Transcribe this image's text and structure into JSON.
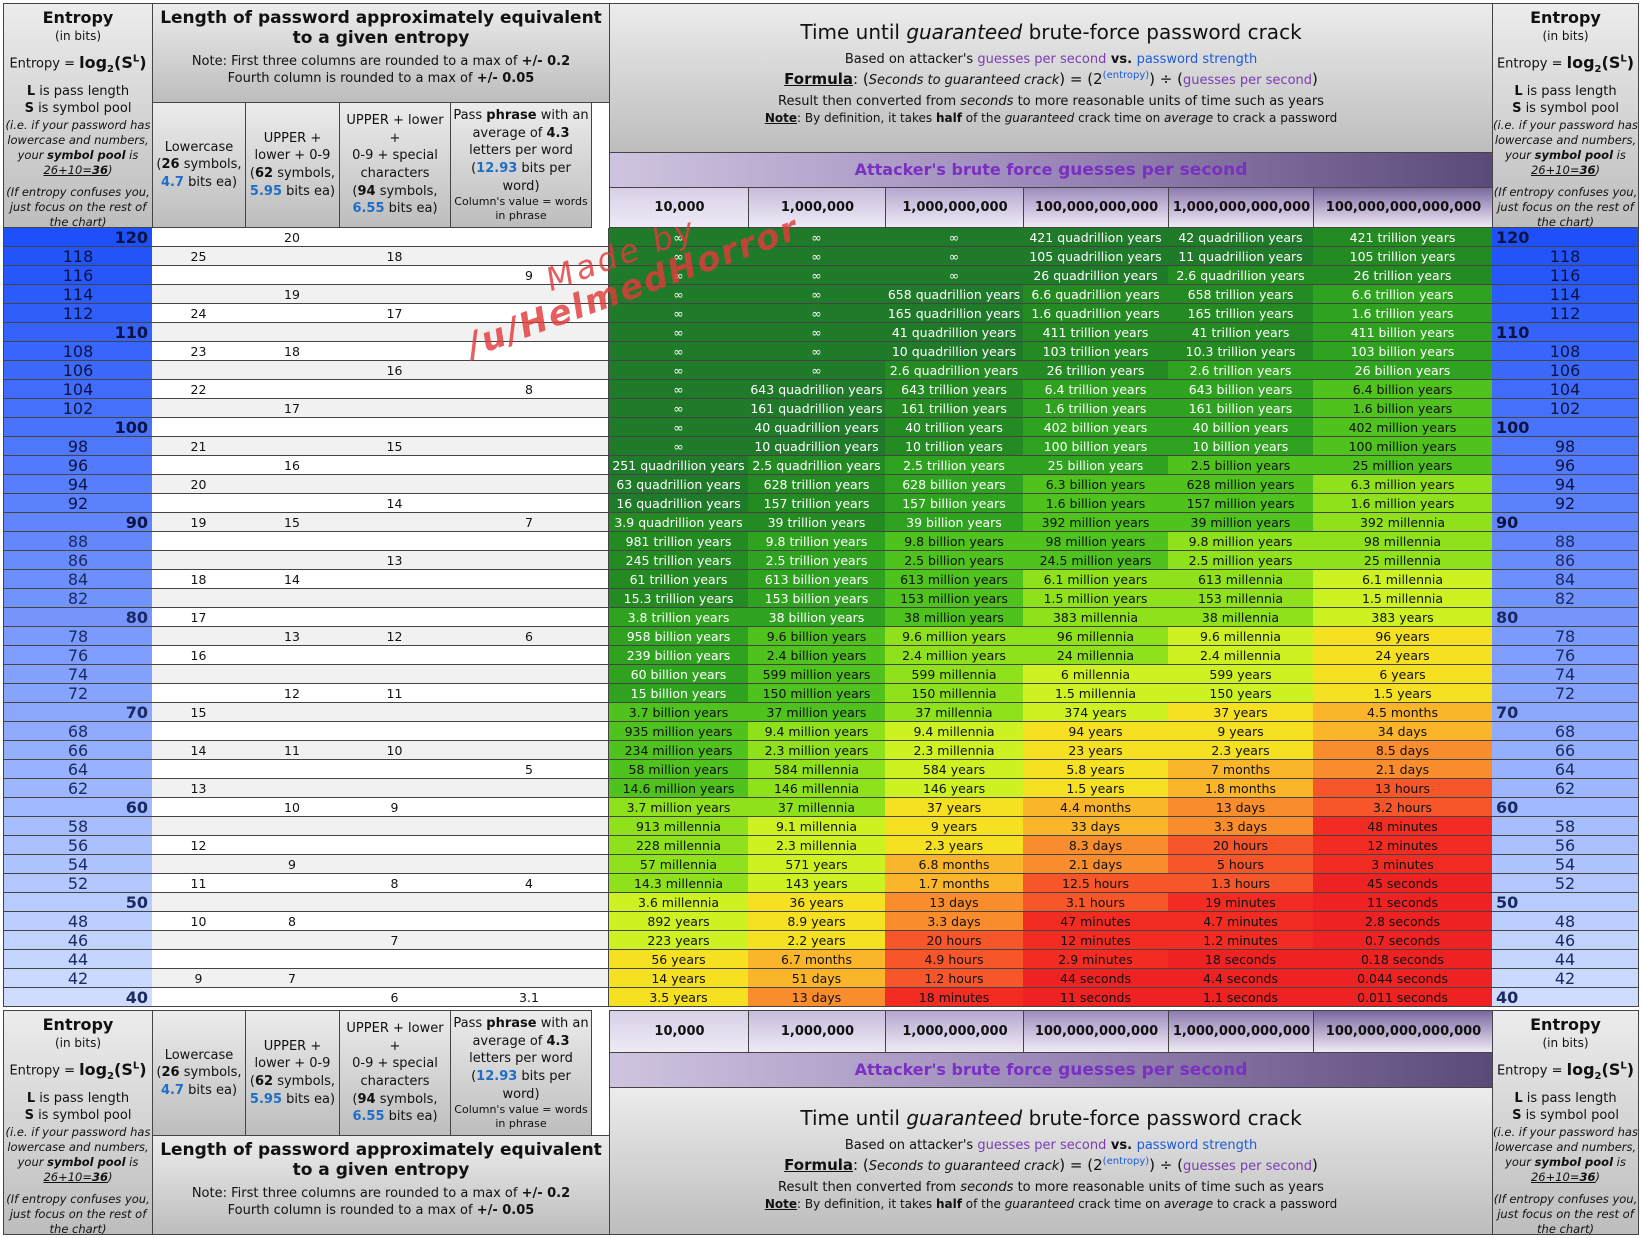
{
  "entropy_panel": {
    "title": "Entropy",
    "subtitle": "(in bits)",
    "formula_prefix": "Entropy = ",
    "formula_log": "log",
    "formula_base": "2",
    "formula_arg_open": "(S",
    "formula_arg_exp": "L",
    "formula_arg_close": ")",
    "l_letter": "L",
    "l_desc": " is pass length",
    "s_letter": "S",
    "s_desc": " is symbol pool",
    "example_a": "(i.e. if your password has lowercase and numbers, your ",
    "example_b": "symbol pool",
    "example_c": " is ",
    "example_calc": "26+10=",
    "example_result": "36",
    "example_end": ")",
    "confuse": "(If entropy confuses you, just focus on the rest of the chart)"
  },
  "length_panel": {
    "title": "Length of password approximately equivalent to a given entropy",
    "note1_a": "Note: First three columns are rounded to a max of ",
    "note1_b": "+/- 0.2",
    "note2_a": "Fourth column is rounded to a max of ",
    "note2_b": "+/- 0.05",
    "col1": {
      "line1": "Lowercase",
      "line2_a": "(",
      "line2_b": "26",
      "line2_c": " symbols,",
      "line3_a": "4.7",
      "line3_b": " bits ea)"
    },
    "col2": {
      "line1": "UPPER +",
      "line2": "lower + 0-9",
      "line3_a": "(",
      "line3_b": "62",
      "line3_c": " symbols,",
      "line4_a": "5.95",
      "line4_b": " bits ea)"
    },
    "col3": {
      "line1": "UPPER + lower +",
      "line2": "0-9 + special",
      "line3": "characters",
      "line4_a": "(",
      "line4_b": "94",
      "line4_c": " symbols,",
      "line5_a": "6.55",
      "line5_b": " bits ea)"
    },
    "col4": {
      "line1_a": "Pass ",
      "line1_b": "phrase",
      "line1_c": " with an",
      "line2_a": "average of ",
      "line2_b": "4.3",
      "line3": "letters per word",
      "line4_a": "(",
      "line4_b": "12.93",
      "line4_c": " bits per",
      "line5": "word)",
      "line6": "Column's value = words in phrase"
    }
  },
  "time_panel": {
    "title_a": "Time until ",
    "title_b": "guaranteed",
    "title_c": " brute-force password crack",
    "based_a": "Based on attacker's ",
    "based_b": "guesses per second",
    "based_c": " vs. ",
    "based_d": "password strength",
    "formula_label": "Formula",
    "formula_colon": ": ",
    "formula_open": "(",
    "formula_seconds": "Seconds to guaranteed crack",
    "formula_close": ")",
    "formula_eq": " = ",
    "formula_two": "(2",
    "formula_exp": "(entropy)",
    "formula_div": ") ÷ (",
    "formula_gps": "guesses per second",
    "formula_end": ")",
    "result_a": "Result then converted from ",
    "result_b": "seconds",
    "result_c": " to more reasonable units of time such as years",
    "note_label": "Note",
    "note_a": ": By definition, it takes ",
    "note_b": "half",
    "note_c": " of the ",
    "note_d": "guaranteed",
    "note_e": " crack time on ",
    "note_f": "average",
    "note_g": " to crack a password"
  },
  "ribbon": {
    "a": "Attacker's brute force ",
    "b": "guesses per second"
  },
  "rates": [
    "10,000",
    "1,000,000",
    "1,000,000,000",
    "100,000,000,000",
    "1,000,000,000,000",
    "100,000,000,000,000"
  ],
  "watermark": {
    "line1": "Made by",
    "line2": "/u/HelmedHorror"
  },
  "rows": [
    {
      "e": "120",
      "lower": "",
      "alnum": "20",
      "full": "",
      "phrase": "",
      "t": [
        "∞",
        "∞",
        "∞",
        "421 quadrillion years",
        "42 quadrillion years",
        "421 trillion years"
      ]
    },
    {
      "e": "118",
      "lower": "25",
      "alnum": "",
      "full": "18",
      "phrase": "",
      "t": [
        "∞",
        "∞",
        "∞",
        "105 quadrillion years",
        "11 quadrillion years",
        "105 trillion years"
      ]
    },
    {
      "e": "116",
      "lower": "",
      "alnum": "",
      "full": "",
      "phrase": "9",
      "t": [
        "∞",
        "∞",
        "∞",
        "26 quadrillion years",
        "2.6 quadrillion years",
        "26 trillion years"
      ]
    },
    {
      "e": "114",
      "lower": "",
      "alnum": "19",
      "full": "",
      "phrase": "",
      "t": [
        "∞",
        "∞",
        "658 quadrillion years",
        "6.6 quadrillion years",
        "658 trillion years",
        "6.6 trillion years"
      ]
    },
    {
      "e": "112",
      "lower": "24",
      "alnum": "",
      "full": "17",
      "phrase": "",
      "t": [
        "∞",
        "∞",
        "165 quadrillion years",
        "1.6 quadrillion years",
        "165 trillion years",
        "1.6 trillion years"
      ]
    },
    {
      "e": "110",
      "lower": "",
      "alnum": "",
      "full": "",
      "phrase": "",
      "t": [
        "∞",
        "∞",
        "41 quadrillion years",
        "411 trillion years",
        "41 trillion years",
        "411 billion years"
      ]
    },
    {
      "e": "108",
      "lower": "23",
      "alnum": "18",
      "full": "",
      "phrase": "",
      "t": [
        "∞",
        "∞",
        "10 quadrillion years",
        "103 trillion years",
        "10.3 trillion years",
        "103 billion years"
      ]
    },
    {
      "e": "106",
      "lower": "",
      "alnum": "",
      "full": "16",
      "phrase": "",
      "t": [
        "∞",
        "∞",
        "2.6 quadrillion years",
        "26 trillion years",
        "2.6 trillion years",
        "26 billion years"
      ]
    },
    {
      "e": "104",
      "lower": "22",
      "alnum": "",
      "full": "",
      "phrase": "8",
      "t": [
        "∞",
        "643 quadrillion years",
        "643 trillion years",
        "6.4 trillion years",
        "643 billion years",
        "6.4 billion years"
      ]
    },
    {
      "e": "102",
      "lower": "",
      "alnum": "17",
      "full": "",
      "phrase": "",
      "t": [
        "∞",
        "161 quadrillion years",
        "161 trillion years",
        "1.6 trillion years",
        "161 billion years",
        "1.6 billion years"
      ]
    },
    {
      "e": "100",
      "lower": "",
      "alnum": "",
      "full": "",
      "phrase": "",
      "t": [
        "∞",
        "40 quadrillion years",
        "40 trillion years",
        "402 billion years",
        "40 billion years",
        "402 million years"
      ]
    },
    {
      "e": "98",
      "lower": "21",
      "alnum": "",
      "full": "15",
      "phrase": "",
      "t": [
        "∞",
        "10 quadrillion years",
        "10 trillion years",
        "100 billion years",
        "10 billion years",
        "100 million years"
      ]
    },
    {
      "e": "96",
      "lower": "",
      "alnum": "16",
      "full": "",
      "phrase": "",
      "t": [
        "251 quadrillion years",
        "2.5 quadrillion years",
        "2.5 trillion years",
        "25 billion years",
        "2.5 billion years",
        "25 million years"
      ]
    },
    {
      "e": "94",
      "lower": "20",
      "alnum": "",
      "full": "",
      "phrase": "",
      "t": [
        "63 quadrillion years",
        "628 trillion years",
        "628 billion years",
        "6.3 billion years",
        "628 million years",
        "6.3 million years"
      ]
    },
    {
      "e": "92",
      "lower": "",
      "alnum": "",
      "full": "14",
      "phrase": "",
      "t": [
        "16 quadrillion years",
        "157 trillion years",
        "157 billion years",
        "1.6 billion years",
        "157 million years",
        "1.6 million years"
      ]
    },
    {
      "e": "90",
      "lower": "19",
      "alnum": "15",
      "full": "",
      "phrase": "7",
      "t": [
        "3.9 quadrillion years",
        "39 trillion years",
        "39 billion years",
        "392 million years",
        "39 million years",
        "392 millennia"
      ]
    },
    {
      "e": "88",
      "lower": "",
      "alnum": "",
      "full": "",
      "phrase": "",
      "t": [
        "981 trillion years",
        "9.8 trillion years",
        "9.8 billion years",
        "98 million years",
        "9.8 million years",
        "98 millennia"
      ]
    },
    {
      "e": "86",
      "lower": "",
      "alnum": "",
      "full": "13",
      "phrase": "",
      "t": [
        "245 trillion years",
        "2.5 trillion years",
        "2.5 billion years",
        "24.5 million years",
        "2.5 million years",
        "25 millennia"
      ]
    },
    {
      "e": "84",
      "lower": "18",
      "alnum": "14",
      "full": "",
      "phrase": "",
      "t": [
        "61 trillion years",
        "613 billion years",
        "613 million years",
        "6.1 million years",
        "613 millennia",
        "6.1 millennia"
      ]
    },
    {
      "e": "82",
      "lower": "",
      "alnum": "",
      "full": "",
      "phrase": "",
      "t": [
        "15.3 trillion years",
        "153 billion years",
        "153 million years",
        "1.5 million years",
        "153 millennia",
        "1.5 millennia"
      ]
    },
    {
      "e": "80",
      "lower": "17",
      "alnum": "",
      "full": "",
      "phrase": "",
      "t": [
        "3.8 trillion years",
        "38 billion years",
        "38 million years",
        "383 millennia",
        "38 millennia",
        "383 years"
      ]
    },
    {
      "e": "78",
      "lower": "",
      "alnum": "13",
      "full": "12",
      "phrase": "6",
      "t": [
        "958 billion years",
        "9.6 billion years",
        "9.6 million years",
        "96 millennia",
        "9.6 millennia",
        "96 years"
      ]
    },
    {
      "e": "76",
      "lower": "16",
      "alnum": "",
      "full": "",
      "phrase": "",
      "t": [
        "239 billion years",
        "2.4 billion years",
        "2.4 million years",
        "24 millennia",
        "2.4 millennia",
        "24 years"
      ]
    },
    {
      "e": "74",
      "lower": "",
      "alnum": "",
      "full": "",
      "phrase": "",
      "t": [
        "60 billion years",
        "599 million years",
        "599 millennia",
        "6 millennia",
        "599 years",
        "6 years"
      ]
    },
    {
      "e": "72",
      "lower": "",
      "alnum": "12",
      "full": "11",
      "phrase": "",
      "t": [
        "15 billion years",
        "150 million years",
        "150 millennia",
        "1.5 millennia",
        "150 years",
        "1.5 years"
      ]
    },
    {
      "e": "70",
      "lower": "15",
      "alnum": "",
      "full": "",
      "phrase": "",
      "t": [
        "3.7 billion years",
        "37 million years",
        "37 millennia",
        "374 years",
        "37 years",
        "4.5 months"
      ]
    },
    {
      "e": "68",
      "lower": "",
      "alnum": "",
      "full": "",
      "phrase": "",
      "t": [
        "935 million years",
        "9.4 million years",
        "9.4 millennia",
        "94 years",
        "9 years",
        "34 days"
      ]
    },
    {
      "e": "66",
      "lower": "14",
      "alnum": "11",
      "full": "10",
      "phrase": "",
      "t": [
        "234 million years",
        "2.3 million years",
        "2.3 millennia",
        "23 years",
        "2.3 years",
        "8.5 days"
      ]
    },
    {
      "e": "64",
      "lower": "",
      "alnum": "",
      "full": "",
      "phrase": "5",
      "t": [
        "58 million years",
        "584 millennia",
        "584 years",
        "5.8 years",
        "7 months",
        "2.1 days"
      ]
    },
    {
      "e": "62",
      "lower": "13",
      "alnum": "",
      "full": "",
      "phrase": "",
      "t": [
        "14.6 million years",
        "146 millennia",
        "146 years",
        "1.5 years",
        "1.8 months",
        "13 hours"
      ]
    },
    {
      "e": "60",
      "lower": "",
      "alnum": "10",
      "full": "9",
      "phrase": "",
      "t": [
        "3.7 million years",
        "37 millennia",
        "37 years",
        "4.4 months",
        "13 days",
        "3.2 hours"
      ]
    },
    {
      "e": "58",
      "lower": "",
      "alnum": "",
      "full": "",
      "phrase": "",
      "t": [
        "913 millennia",
        "9.1 millennia",
        "9 years",
        "33 days",
        "3.3 days",
        "48 minutes"
      ]
    },
    {
      "e": "56",
      "lower": "12",
      "alnum": "",
      "full": "",
      "phrase": "",
      "t": [
        "228 millennia",
        "2.3 millennia",
        "2.3 years",
        "8.3 days",
        "20 hours",
        "12 minutes"
      ]
    },
    {
      "e": "54",
      "lower": "",
      "alnum": "9",
      "full": "",
      "phrase": "",
      "t": [
        "57 millennia",
        "571 years",
        "6.8 months",
        "2.1 days",
        "5 hours",
        "3 minutes"
      ]
    },
    {
      "e": "52",
      "lower": "11",
      "alnum": "",
      "full": "8",
      "phrase": "4",
      "t": [
        "14.3 millennia",
        "143 years",
        "1.7 months",
        "12.5 hours",
        "1.3 hours",
        "45 seconds"
      ]
    },
    {
      "e": "50",
      "lower": "",
      "alnum": "",
      "full": "",
      "phrase": "",
      "t": [
        "3.6 millennia",
        "36 years",
        "13 days",
        "3.1 hours",
        "19 minutes",
        "11 seconds"
      ]
    },
    {
      "e": "48",
      "lower": "10",
      "alnum": "8",
      "full": "",
      "phrase": "",
      "t": [
        "892 years",
        "8.9 years",
        "3.3 days",
        "47 minutes",
        "4.7 minutes",
        "2.8 seconds"
      ]
    },
    {
      "e": "46",
      "lower": "",
      "alnum": "",
      "full": "7",
      "phrase": "",
      "t": [
        "223 years",
        "2.2 years",
        "20 hours",
        "12 minutes",
        "1.2 minutes",
        "0.7 seconds"
      ]
    },
    {
      "e": "44",
      "lower": "",
      "alnum": "",
      "full": "",
      "phrase": "",
      "t": [
        "56 years",
        "6.7 months",
        "4.9 hours",
        "2.9 minutes",
        "18 seconds",
        "0.18 seconds"
      ]
    },
    {
      "e": "42",
      "lower": "9",
      "alnum": "7",
      "full": "",
      "phrase": "",
      "t": [
        "14 years",
        "51 days",
        "1.2 hours",
        "44 seconds",
        "4.4 seconds",
        "0.044 seconds"
      ]
    },
    {
      "e": "40",
      "lower": "",
      "alnum": "",
      "full": "6",
      "phrase": "3.1",
      "t": [
        "3.5 years",
        "13 days",
        "18 minutes",
        "11 seconds",
        "1.1 seconds",
        "0.011 seconds"
      ]
    }
  ]
}
